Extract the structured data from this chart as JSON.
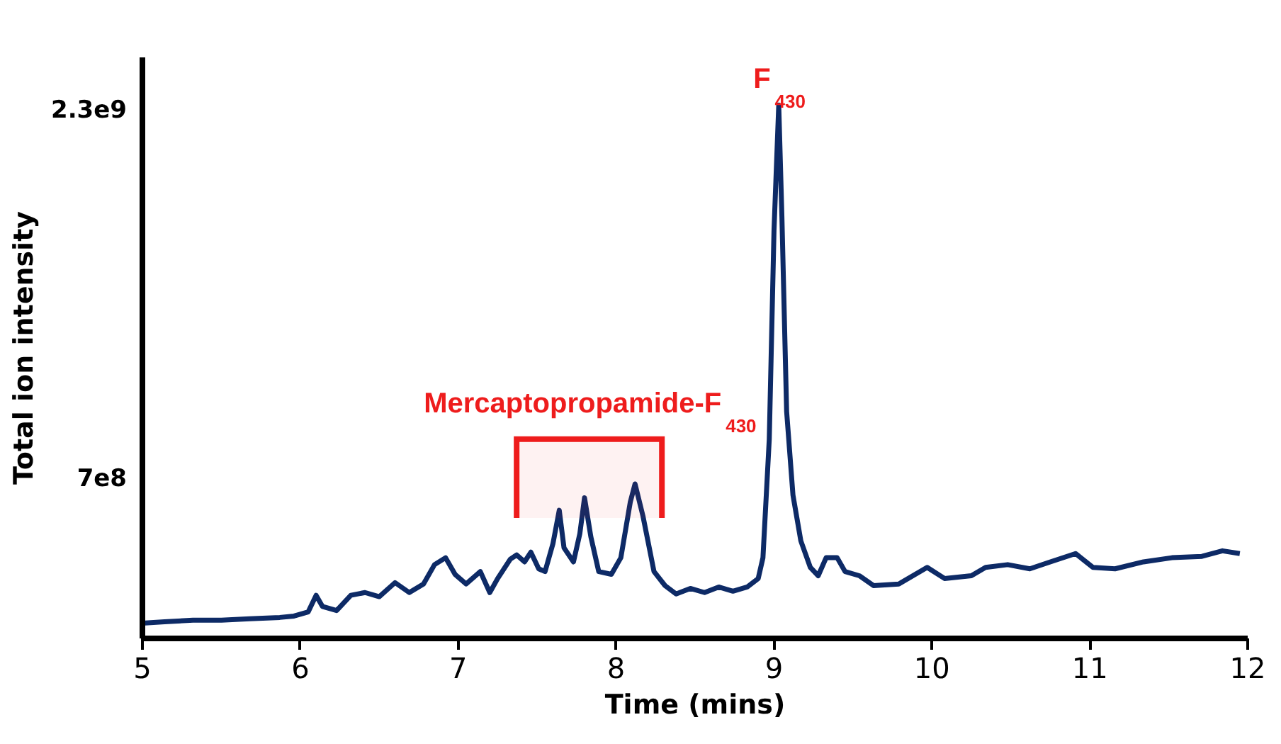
{
  "chart_data": {
    "type": "line",
    "xlabel": "Time (mins)",
    "ylabel": "Total ion intensity",
    "x": [
      5.0,
      5.14,
      5.32,
      5.5,
      5.68,
      5.87,
      5.96,
      6.05,
      6.1,
      6.14,
      6.23,
      6.32,
      6.41,
      6.5,
      6.6,
      6.69,
      6.78,
      6.85,
      6.92,
      6.98,
      7.05,
      7.14,
      7.2,
      7.25,
      7.33,
      7.37,
      7.42,
      7.46,
      7.51,
      7.55,
      7.6,
      7.64,
      7.67,
      7.73,
      7.77,
      7.8,
      7.84,
      7.89,
      7.97,
      8.03,
      8.09,
      8.12,
      8.17,
      8.24,
      8.31,
      8.38,
      8.47,
      8.56,
      8.65,
      8.74,
      8.83,
      8.9,
      8.93,
      8.97,
      9.0,
      9.03,
      9.05,
      9.08,
      9.12,
      9.17,
      9.23,
      9.28,
      9.33,
      9.4,
      9.45,
      9.54,
      9.63,
      9.79,
      9.97,
      10.08,
      10.25,
      10.34,
      10.48,
      10.62,
      10.75,
      10.91,
      11.02,
      11.16,
      11.34,
      11.52,
      11.71,
      11.84,
      11.95
    ],
    "series": [
      {
        "color": "#0d2a66",
        "values": [
          66000000.0,
          72000000.0,
          79000000.0,
          79000000.0,
          85000000.0,
          91000000.0,
          97000000.0,
          115000000.0,
          187000000.0,
          139000000.0,
          121000000.0,
          187000000.0,
          199000000.0,
          181000000.0,
          242000000.0,
          199000000.0,
          236000000.0,
          320000000.0,
          350000000.0,
          278000000.0,
          236000000.0,
          290000000.0,
          199000000.0,
          260000000.0,
          344000000.0,
          362000000.0,
          332000000.0,
          374000000.0,
          302000000.0,
          290000000.0,
          411000000.0,
          556000000.0,
          393000000.0,
          332000000.0,
          453000000.0,
          610000000.0,
          441000000.0,
          290000000.0,
          278000000.0,
          350000000.0,
          592000000.0,
          670000000.0,
          531000000.0,
          290000000.0,
          229000000.0,
          193000000.0,
          217000000.0,
          199000000.0,
          223000000.0,
          205000000.0,
          223000000.0,
          260000000.0,
          350000000.0,
          864000000.0,
          1769000000.0,
          2313000000.0,
          1830000000.0,
          984000000.0,
          622000000.0,
          423000000.0,
          308000000.0,
          272000000.0,
          350000000.0,
          350000000.0,
          290000000.0,
          272000000.0,
          229000000.0,
          236000000.0,
          308000000.0,
          260000000.0,
          272000000.0,
          308000000.0,
          320000000.0,
          302000000.0,
          332000000.0,
          368000000.0,
          308000000.0,
          302000000.0,
          332000000.0,
          350000000.0,
          356000000.0,
          380000000.0,
          368000000.0
        ]
      }
    ],
    "xlim": [
      5,
      12
    ],
    "xticks": [
      5,
      6,
      7,
      8,
      9,
      10,
      11,
      12
    ],
    "ylim": [
      0,
      2520000000.0
    ],
    "yticks": [
      {
        "value": 700000000.0,
        "label": "7e8"
      },
      {
        "value": 2300000000.0,
        "label": "2.3e9"
      }
    ],
    "line_style": "solid",
    "marker": "none",
    "grid": false,
    "bands": [
      {
        "axis": "x",
        "from": 7.37,
        "to": 8.29,
        "label": "Mercaptopropamide-F$_{430}$",
        "color": "#ee1c1c"
      }
    ],
    "annotations": [
      {
        "text": "F$_{430}$",
        "x": 9.03,
        "y": 2313000000.0
      }
    ]
  }
}
